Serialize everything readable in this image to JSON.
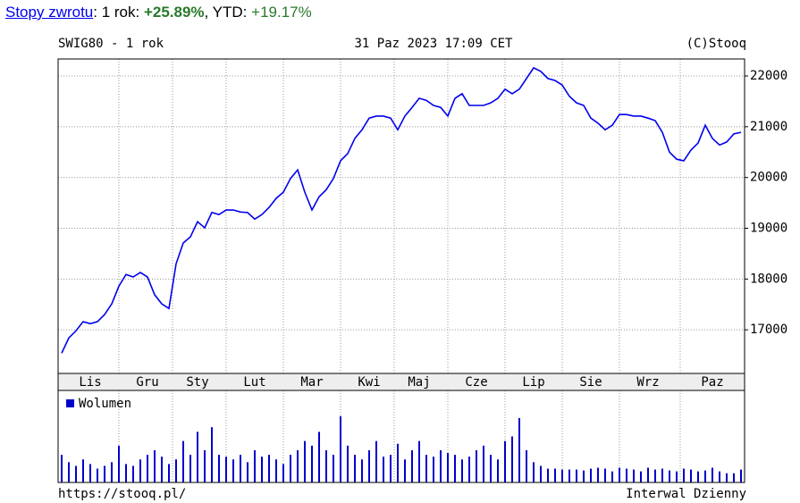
{
  "header": {
    "link": "Stopy zwrotu",
    "period_label": ": 1 rok: ",
    "period_return": "+25.89%",
    "ytd_label": ", YTD: ",
    "ytd_return": "+19.17%"
  },
  "chart_header": {
    "left": "SWIG80 - 1 rok",
    "center": "31 Paz 2023 17:09 CET",
    "right": "(C)Stooq"
  },
  "footer": {
    "left": "https://stooq.pl/",
    "right": "Interwal Dzienny"
  },
  "chart_data": [
    {
      "type": "line",
      "categories": [
        null,
        null,
        null,
        null,
        "Lis",
        null,
        null,
        null,
        null,
        null,
        null,
        null,
        "Gru",
        null,
        null,
        null,
        null,
        null,
        null,
        "Sty",
        null,
        null,
        null,
        null,
        null,
        null,
        null,
        "Lut",
        null,
        null,
        null,
        null,
        null,
        null,
        null,
        "Mar",
        null,
        null,
        null,
        null,
        null,
        null,
        null,
        "Kwi",
        null,
        null,
        null,
        null,
        null,
        null,
        "Maj",
        null,
        null,
        null,
        null,
        null,
        null,
        null,
        "Cze",
        null,
        null,
        null,
        null,
        null,
        null,
        null,
        "Lip",
        null,
        null,
        null,
        null,
        null,
        null,
        null,
        "Sie",
        null,
        null,
        null,
        null,
        null,
        null,
        null,
        "Wrz",
        null,
        null,
        null,
        null,
        null,
        null,
        null,
        null,
        "Paz",
        null,
        null,
        null,
        null
      ],
      "series": [
        {
          "name": "SWIG80",
          "color": "#0000ee",
          "values": [
            16540,
            16840,
            16980,
            17160,
            17120,
            17160,
            17300,
            17510,
            17860,
            18090,
            18040,
            18130,
            18040,
            17690,
            17510,
            17420,
            18300,
            18710,
            18830,
            19130,
            19010,
            19310,
            19270,
            19360,
            19360,
            19320,
            19310,
            19180,
            19270,
            19410,
            19590,
            19710,
            19980,
            20150,
            19710,
            19360,
            19620,
            19760,
            19980,
            20330,
            20470,
            20770,
            20940,
            21170,
            21210,
            21210,
            21170,
            20940,
            21210,
            21380,
            21560,
            21520,
            21420,
            21380,
            21210,
            21560,
            21650,
            21420,
            21420,
            21420,
            21470,
            21560,
            21740,
            21650,
            21740,
            21950,
            22160,
            22090,
            21950,
            21910,
            21820,
            21600,
            21470,
            21420,
            21170,
            21070,
            20940,
            21030,
            21240,
            21240,
            21210,
            21210,
            21170,
            21120,
            20890,
            20500,
            20360,
            20330,
            20540,
            20680,
            21030,
            20770,
            20640,
            20700,
            20860,
            20890
          ]
        }
      ],
      "ylim": [
        16140,
        22335
      ],
      "yticks": [
        17000,
        18000,
        19000,
        20000,
        21000,
        22000
      ],
      "grid": true
    },
    {
      "type": "bar",
      "series": [
        {
          "name": "Wolumen",
          "color": "#0000cc",
          "values": [
            30,
            22,
            18,
            25,
            20,
            15,
            18,
            22,
            40,
            20,
            18,
            25,
            30,
            35,
            28,
            20,
            25,
            45,
            30,
            55,
            35,
            60,
            30,
            28,
            25,
            30,
            22,
            35,
            28,
            30,
            25,
            20,
            30,
            35,
            45,
            40,
            55,
            35,
            30,
            72,
            40,
            30,
            25,
            35,
            45,
            28,
            30,
            42,
            25,
            35,
            45,
            30,
            28,
            35,
            32,
            30,
            25,
            28,
            35,
            40,
            30,
            25,
            45,
            50,
            70,
            35,
            22,
            18,
            15,
            15,
            14,
            14,
            14,
            13,
            15,
            16,
            15,
            12,
            16,
            15,
            14,
            12,
            16,
            14,
            15,
            13,
            12,
            15,
            14,
            12,
            13,
            16,
            12,
            10,
            10,
            14
          ]
        }
      ],
      "ylim": [
        0,
        100
      ]
    }
  ]
}
